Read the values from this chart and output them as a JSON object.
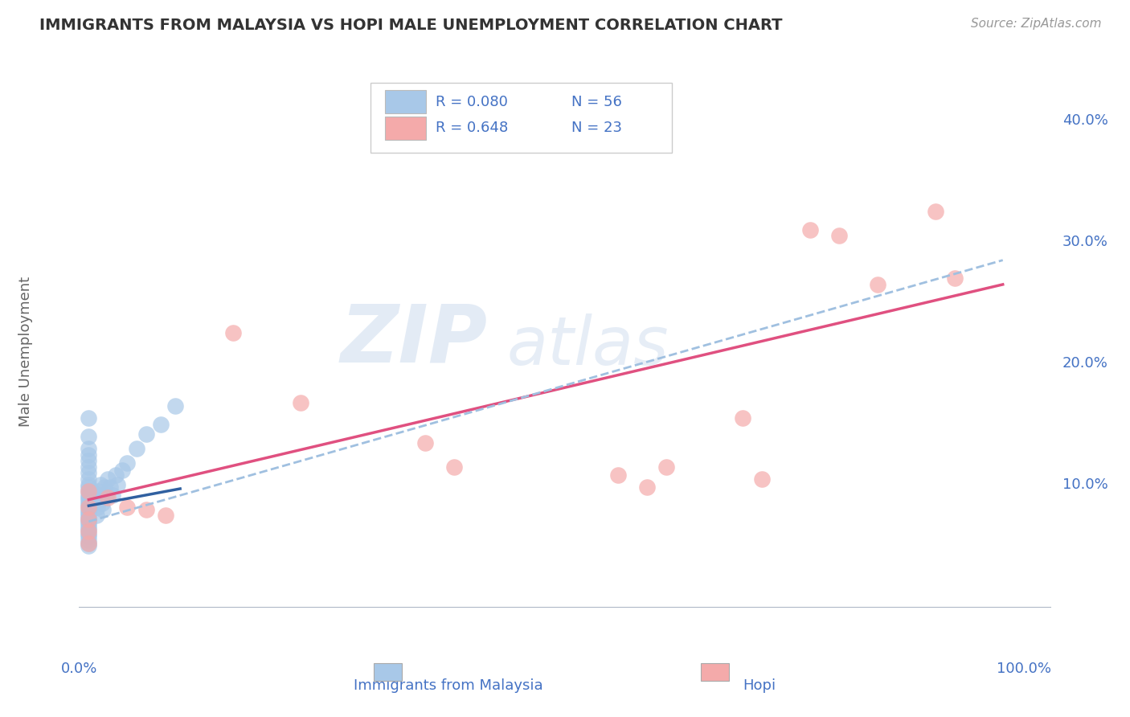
{
  "title": "IMMIGRANTS FROM MALAYSIA VS HOPI MALE UNEMPLOYMENT CORRELATION CHART",
  "source": "Source: ZipAtlas.com",
  "xlabel_blue": "Immigrants from Malaysia",
  "xlabel_pink": "Hopi",
  "ylabel": "Male Unemployment",
  "watermark_zip": "ZIP",
  "watermark_atlas": "atlas",
  "legend_blue_R": "R = 0.080",
  "legend_blue_N": "N = 56",
  "legend_pink_R": "R = 0.648",
  "legend_pink_N": "N = 23",
  "xlim": [
    -0.01,
    1.0
  ],
  "ylim": [
    -0.02,
    0.44
  ],
  "yticks": [
    0.0,
    0.1,
    0.2,
    0.3,
    0.4
  ],
  "ytick_labels": [
    "",
    "10.0%",
    "20.0%",
    "30.0%",
    "40.0%"
  ],
  "blue_color": "#a8c8e8",
  "pink_color": "#f4aaaa",
  "blue_line_color": "#3060a0",
  "pink_line_color": "#e05080",
  "dashed_line_color": "#a0c0e0",
  "grid_color": "#d0d8e8",
  "background_color": "#ffffff",
  "blue_scatter_x": [
    0.0,
    0.0,
    0.0,
    0.0,
    0.0,
    0.0,
    0.0,
    0.0,
    0.0,
    0.0,
    0.0,
    0.0,
    0.0,
    0.0,
    0.0,
    0.0,
    0.0,
    0.0,
    0.0,
    0.0,
    0.0,
    0.0,
    0.0,
    0.0,
    0.0,
    0.0,
    0.0,
    0.0,
    0.0,
    0.0,
    0.003,
    0.004,
    0.005,
    0.006,
    0.007,
    0.008,
    0.009,
    0.01,
    0.011,
    0.012,
    0.013,
    0.014,
    0.015,
    0.016,
    0.018,
    0.02,
    0.022,
    0.025,
    0.028,
    0.03,
    0.035,
    0.04,
    0.05,
    0.06,
    0.075,
    0.09
  ],
  "blue_scatter_y": [
    0.155,
    0.14,
    0.13,
    0.125,
    0.12,
    0.115,
    0.11,
    0.105,
    0.1,
    0.098,
    0.095,
    0.092,
    0.09,
    0.088,
    0.085,
    0.083,
    0.08,
    0.078,
    0.076,
    0.074,
    0.072,
    0.07,
    0.068,
    0.065,
    0.063,
    0.06,
    0.058,
    0.055,
    0.052,
    0.05,
    0.095,
    0.09,
    0.085,
    0.092,
    0.088,
    0.075,
    0.082,
    0.095,
    0.088,
    0.1,
    0.092,
    0.085,
    0.08,
    0.098,
    0.092,
    0.105,
    0.098,
    0.092,
    0.108,
    0.1,
    0.112,
    0.118,
    0.13,
    0.142,
    0.15,
    0.165
  ],
  "pink_scatter_x": [
    0.0,
    0.0,
    0.0,
    0.0,
    0.0,
    0.02,
    0.04,
    0.06,
    0.08,
    0.15,
    0.22,
    0.35,
    0.38,
    0.55,
    0.58,
    0.6,
    0.68,
    0.7,
    0.75,
    0.78,
    0.82,
    0.88,
    0.9
  ],
  "pink_scatter_y": [
    0.095,
    0.082,
    0.072,
    0.062,
    0.052,
    0.09,
    0.082,
    0.08,
    0.075,
    0.225,
    0.168,
    0.135,
    0.115,
    0.108,
    0.098,
    0.115,
    0.155,
    0.105,
    0.31,
    0.305,
    0.265,
    0.325,
    0.27
  ],
  "blue_trend_x": [
    0.0,
    0.095
  ],
  "blue_trend_y": [
    0.083,
    0.097
  ],
  "pink_trend_x": [
    0.0,
    0.95
  ],
  "pink_trend_y": [
    0.088,
    0.265
  ],
  "dash_trend_x": [
    0.0,
    0.95
  ],
  "dash_trend_y": [
    0.07,
    0.285
  ]
}
